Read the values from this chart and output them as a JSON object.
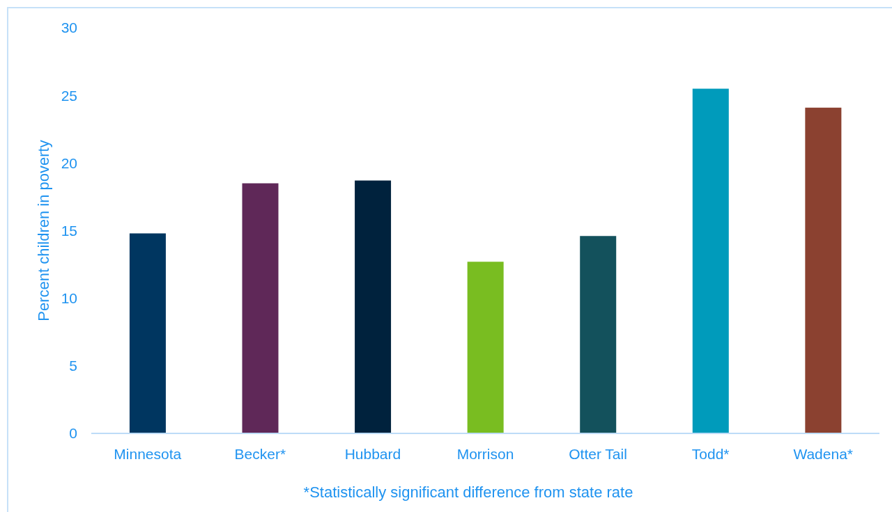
{
  "chart_data": {
    "type": "bar",
    "categories": [
      "Minnesota",
      "Becker*",
      "Hubbard",
      "Morrison",
      "Otter Tail",
      "Todd*",
      "Wadena*"
    ],
    "values": [
      14.8,
      18.5,
      18.7,
      12.7,
      14.6,
      25.5,
      24.1
    ],
    "colors": [
      "#003660",
      "#5f2858",
      "#00223d",
      "#79bd21",
      "#13515c",
      "#009bbb",
      "#8b4130"
    ],
    "ylabel": "Percent children in poverty",
    "annotations": [
      "*Statistically significant difference from state rate"
    ],
    "ylim": [
      0,
      30
    ],
    "yticks": [
      0,
      5,
      10,
      15,
      20,
      25,
      30
    ]
  }
}
